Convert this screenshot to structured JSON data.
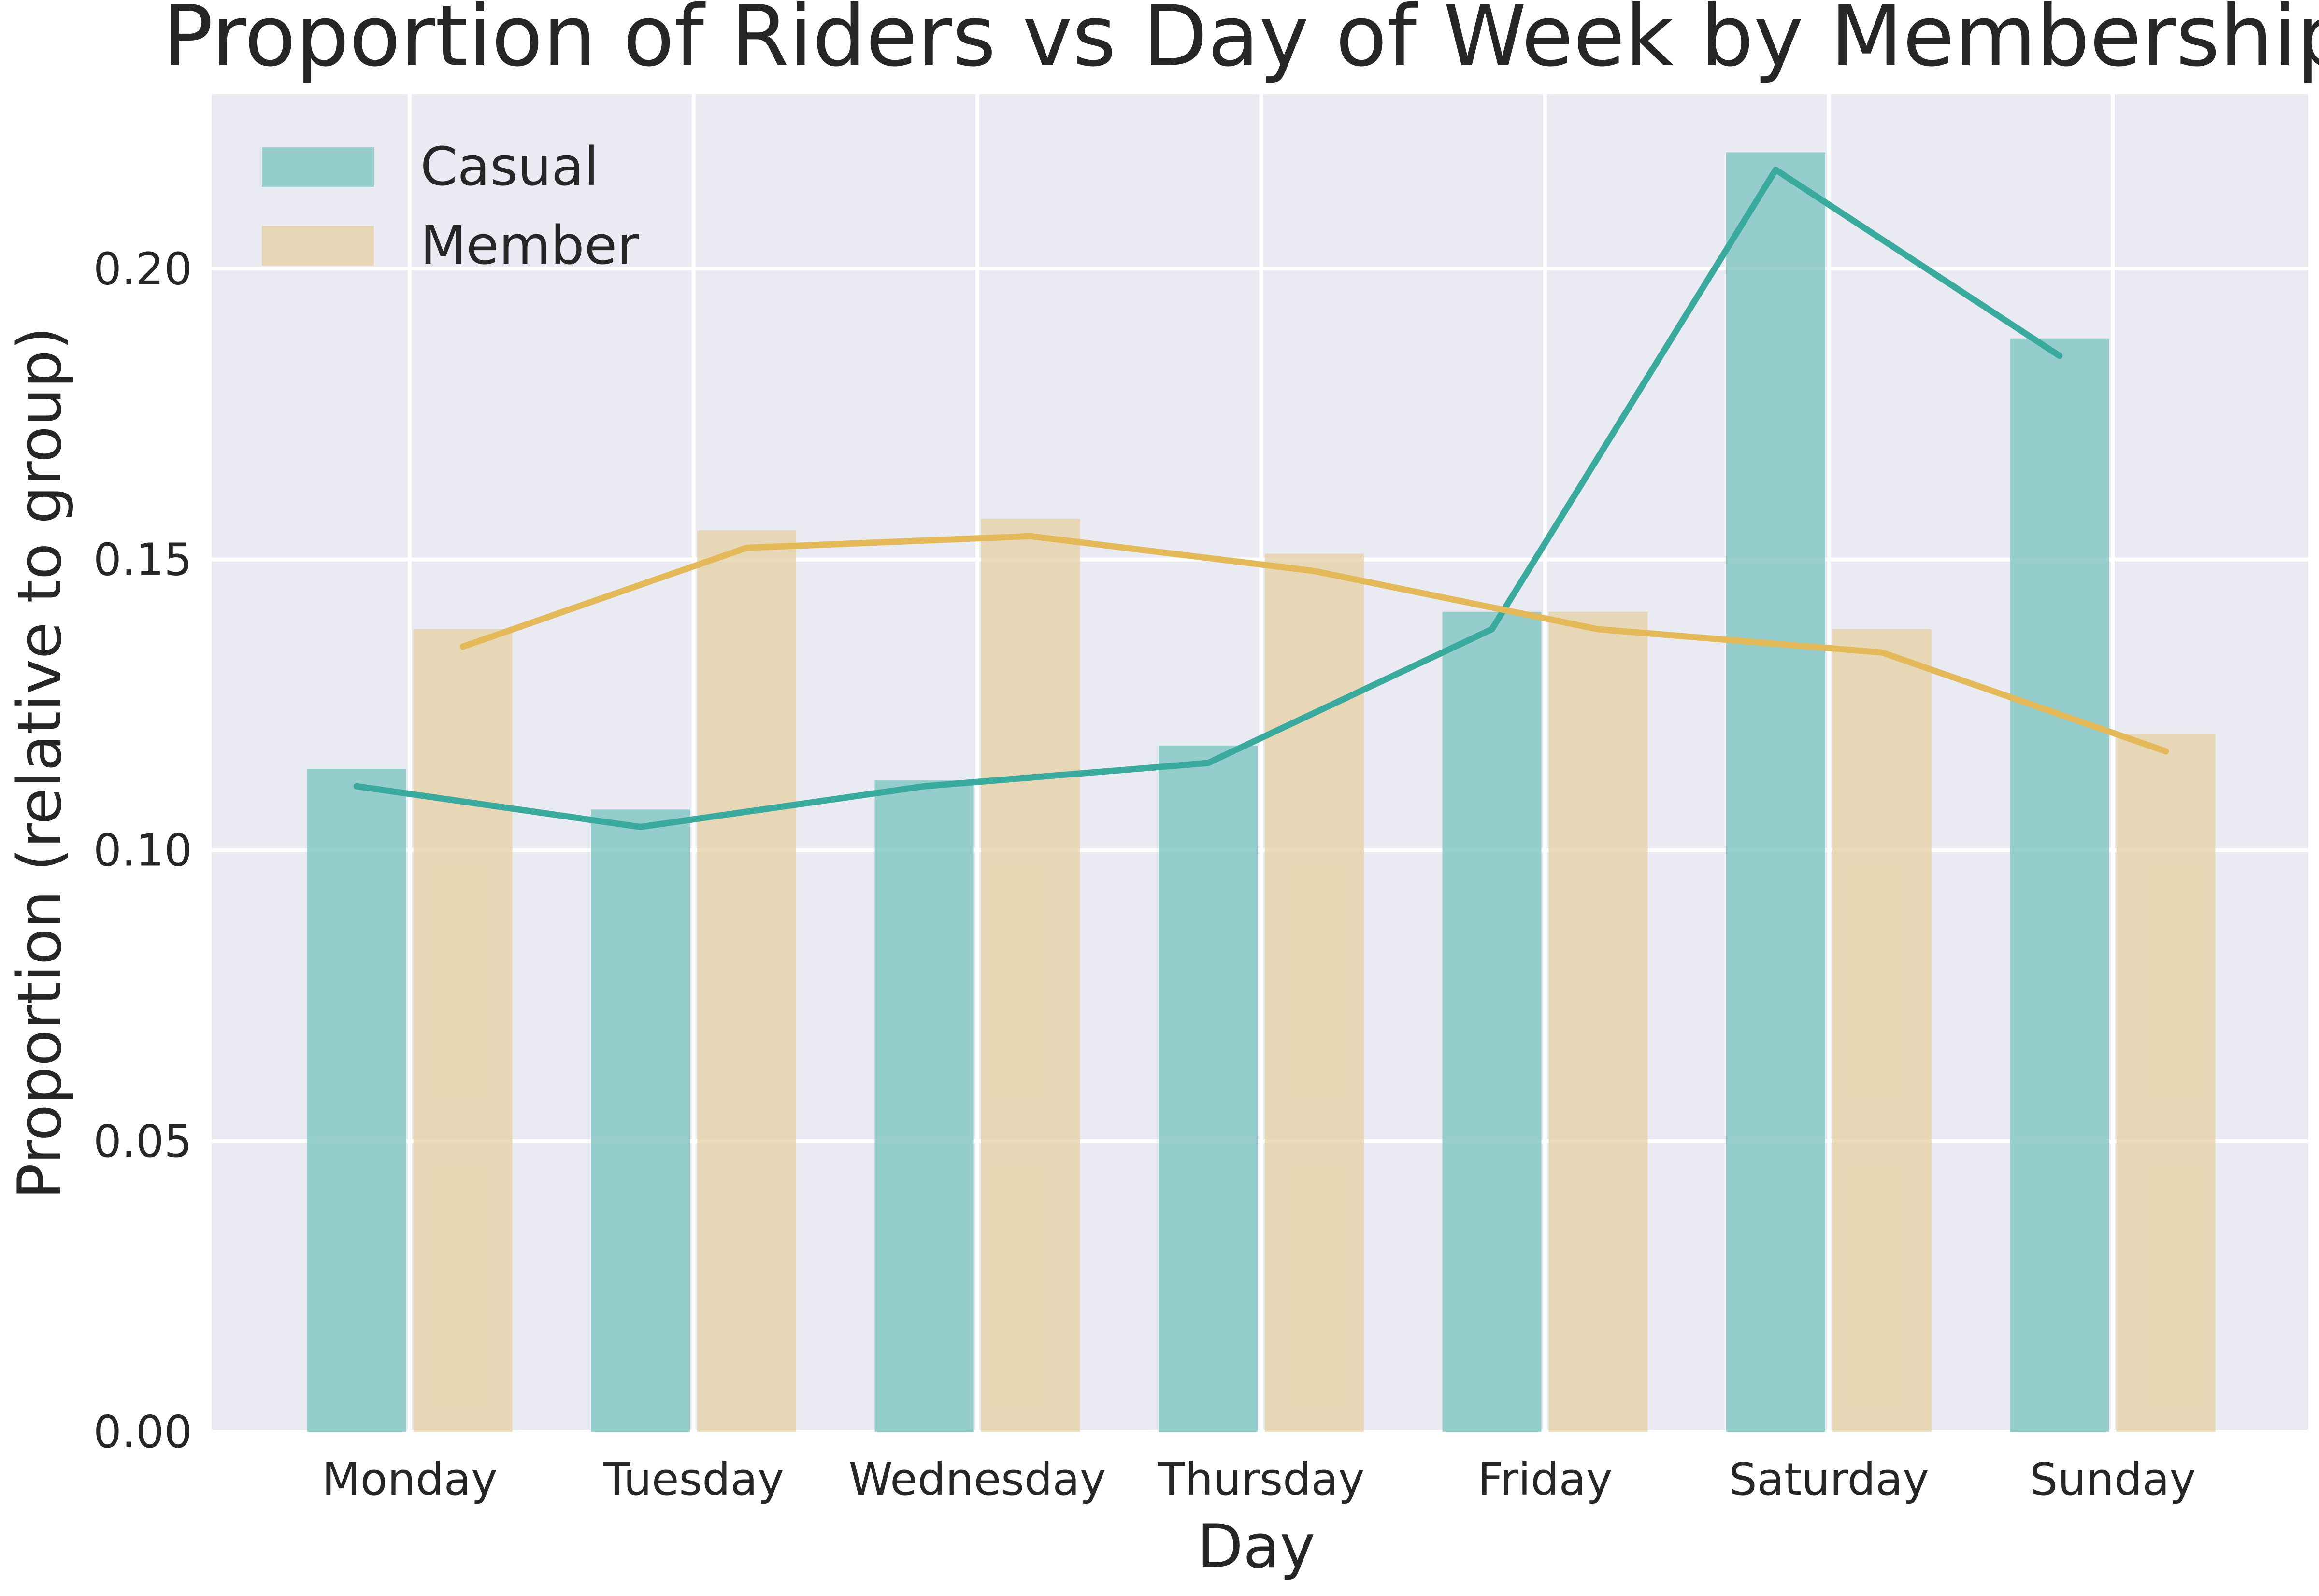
{
  "chart_data": {
    "type": "bar",
    "title": "Proportion of Riders vs Day of Week by Membership",
    "xlabel": "Day",
    "ylabel": "Proportion (relative to group)",
    "categories": [
      "Monday",
      "Tuesday",
      "Wednesday",
      "Thursday",
      "Friday",
      "Saturday",
      "Sunday"
    ],
    "ylim": [
      0,
      0.23
    ],
    "yticks": [
      "0.00",
      "0.05",
      "0.10",
      "0.15",
      "0.20"
    ],
    "grid": true,
    "legend_position": "top-left",
    "series": [
      {
        "name": "Casual",
        "bar_color": "#7fc4c2",
        "line_color": "#3aaa9f",
        "values": [
          0.114,
          0.107,
          0.112,
          0.118,
          0.141,
          0.22,
          0.188
        ],
        "line_values": [
          0.111,
          0.104,
          0.111,
          0.115,
          0.138,
          0.217,
          0.185
        ]
      },
      {
        "name": "Member",
        "bar_color": "#e6d2a6",
        "line_color": "#e3b95a",
        "values": [
          0.138,
          0.155,
          0.157,
          0.151,
          0.141,
          0.138,
          0.12
        ],
        "line_values": [
          0.135,
          0.152,
          0.154,
          0.148,
          0.138,
          0.134,
          0.117
        ]
      }
    ],
    "background_color": "#eaeaf2",
    "grid_color": "#ffffff"
  }
}
